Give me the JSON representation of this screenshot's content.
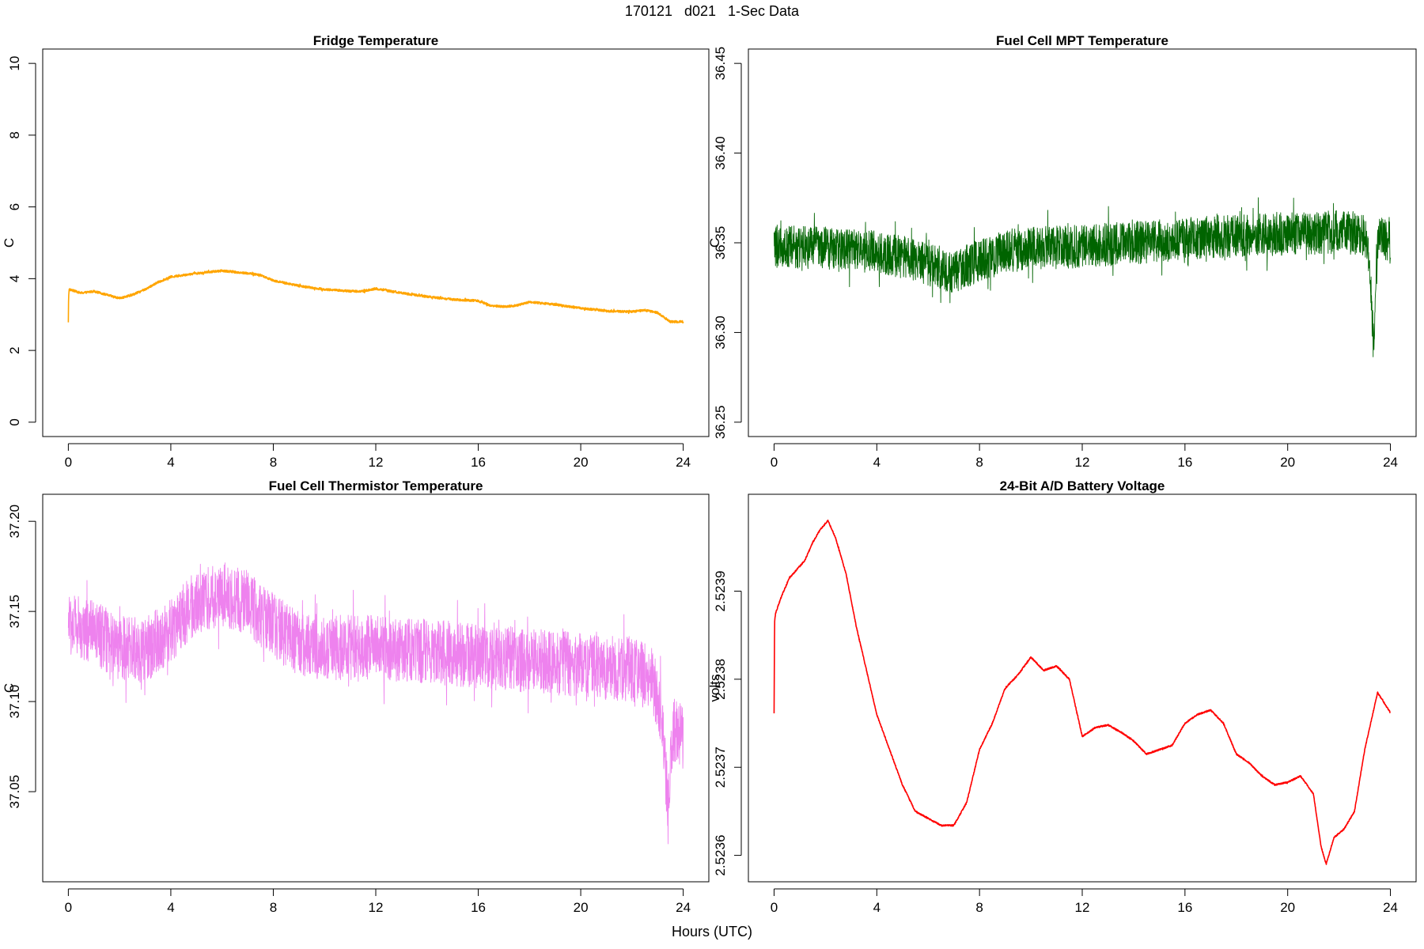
{
  "figure": {
    "suptitle": "170121   d021   1-Sec Data",
    "xlabel": "Hours (UTC)"
  },
  "chart_data": [
    {
      "type": "line",
      "title": "Fridge Temperature",
      "xlabel": "",
      "ylabel": "C",
      "xlim": [
        -1,
        25
      ],
      "ylim": [
        -0.4,
        10.4
      ],
      "xticks": [
        0,
        4,
        8,
        12,
        16,
        20,
        24
      ],
      "yticks": [
        0,
        2,
        4,
        6,
        8,
        10
      ],
      "ytick_labels": [
        "0",
        "2",
        "4",
        "6",
        "8",
        "10"
      ],
      "color": "#FFA500",
      "noise": 0.03,
      "series": [
        {
          "name": "Fridge Temperature",
          "x": [
            0,
            0.01,
            0.03,
            0.5,
            1.0,
            1.5,
            2.0,
            2.5,
            3.0,
            3.5,
            4.0,
            5.0,
            6.0,
            7.0,
            7.5,
            8.0,
            9.0,
            10.0,
            10.5,
            11.0,
            11.5,
            12.0,
            13.0,
            14.0,
            15.0,
            16.0,
            16.5,
            17.0,
            17.5,
            18.0,
            19.0,
            20.0,
            21.0,
            22.0,
            22.5,
            23.0,
            23.5,
            24.0
          ],
          "y": [
            2.8,
            3.5,
            3.7,
            3.6,
            3.65,
            3.55,
            3.45,
            3.55,
            3.7,
            3.9,
            4.05,
            4.15,
            4.22,
            4.15,
            4.1,
            3.95,
            3.8,
            3.7,
            3.68,
            3.65,
            3.65,
            3.72,
            3.6,
            3.5,
            3.42,
            3.38,
            3.25,
            3.22,
            3.25,
            3.35,
            3.28,
            3.18,
            3.1,
            3.08,
            3.12,
            3.05,
            2.8,
            2.8
          ]
        }
      ]
    },
    {
      "type": "line",
      "title": "Fuel Cell MPT Temperature",
      "xlabel": "",
      "ylabel": "C",
      "xlim": [
        -1,
        25
      ],
      "ylim": [
        36.242,
        36.458
      ],
      "xticks": [
        0,
        4,
        8,
        12,
        16,
        20,
        24
      ],
      "yticks": [
        36.25,
        36.3,
        36.35,
        36.4,
        36.45
      ],
      "ytick_labels": [
        "36.25",
        "36.30",
        "36.35",
        "36.40",
        "36.45"
      ],
      "color": "#006400",
      "noise": 0.012,
      "series": [
        {
          "name": "Fuel Cell MPT Temperature",
          "x": [
            0,
            2,
            4,
            5,
            6,
            7,
            8,
            9,
            10,
            12,
            14,
            16,
            18,
            20,
            22,
            23,
            23.2,
            23.35,
            23.45,
            23.6,
            24.0
          ],
          "y": [
            36.348,
            36.347,
            36.345,
            36.342,
            36.338,
            36.334,
            36.34,
            36.345,
            36.347,
            36.348,
            36.35,
            36.352,
            36.354,
            36.355,
            36.356,
            36.355,
            36.335,
            36.29,
            36.34,
            36.355,
            36.35
          ]
        }
      ]
    },
    {
      "type": "line",
      "title": "Fuel Cell Thermistor Temperature",
      "xlabel": "",
      "ylabel": "C",
      "xlim": [
        -1,
        25
      ],
      "ylim": [
        37.0,
        37.215
      ],
      "xticks": [
        0,
        4,
        8,
        12,
        16,
        20,
        24
      ],
      "yticks": [
        37.05,
        37.1,
        37.15,
        37.2
      ],
      "ytick_labels": [
        "37.05",
        "37.10",
        "37.15",
        "37.20"
      ],
      "color": "#EE82EE",
      "noise": 0.018,
      "series": [
        {
          "name": "Fuel Cell Thermistor Temperature",
          "x": [
            0,
            1,
            2,
            3,
            4,
            5,
            6,
            7,
            8,
            9,
            10,
            12,
            14,
            16,
            18,
            20,
            22,
            22.8,
            23.2,
            23.4,
            23.6,
            24.0
          ],
          "y": [
            37.143,
            37.138,
            37.13,
            37.128,
            37.14,
            37.155,
            37.16,
            37.155,
            37.142,
            37.132,
            37.13,
            37.13,
            37.128,
            37.125,
            37.123,
            37.12,
            37.118,
            37.112,
            37.09,
            37.04,
            37.085,
            37.08
          ]
        }
      ]
    },
    {
      "type": "line",
      "title": "24-Bit A/D Battery Voltage",
      "xlabel": "",
      "ylabel": "volts",
      "xlim": [
        -1,
        25
      ],
      "ylim": [
        2.52357,
        2.52401
      ],
      "xticks": [
        0,
        4,
        8,
        12,
        16,
        20,
        24
      ],
      "yticks": [
        2.5236,
        2.5237,
        2.5238,
        2.5239
      ],
      "ytick_labels": [
        "2.5236",
        "2.5237",
        "2.5238",
        "2.5239"
      ],
      "color": "#FF0000",
      "noise": 8e-07,
      "series": [
        {
          "name": "24-Bit A/D Battery Voltage",
          "x": [
            0,
            0.02,
            0.06,
            0.3,
            0.6,
            0.9,
            1.2,
            1.5,
            1.8,
            2.1,
            2.4,
            2.8,
            3.2,
            3.6,
            4.0,
            4.5,
            5.0,
            5.5,
            6.0,
            6.5,
            7.0,
            7.5,
            8.0,
            8.5,
            9.0,
            9.5,
            10.0,
            10.5,
            11.0,
            11.5,
            12.0,
            12.5,
            13.0,
            13.5,
            14.0,
            14.5,
            15.0,
            15.5,
            16.0,
            16.5,
            17.0,
            17.5,
            18.0,
            18.5,
            19.0,
            19.5,
            20.0,
            20.5,
            21.0,
            21.3,
            21.5,
            21.8,
            22.2,
            22.6,
            23.0,
            23.5,
            24.0
          ],
          "y": [
            2.523762,
            2.523865,
            2.523875,
            2.523895,
            2.523915,
            2.523925,
            2.523935,
            2.523955,
            2.52397,
            2.52398,
            2.52396,
            2.52392,
            2.52386,
            2.52381,
            2.52376,
            2.52372,
            2.52368,
            2.52365,
            2.523642,
            2.523634,
            2.523634,
            2.52366,
            2.52372,
            2.52375,
            2.52379,
            2.523805,
            2.523825,
            2.52381,
            2.523815,
            2.5238,
            2.523735,
            2.523745,
            2.523748,
            2.52374,
            2.52373,
            2.523715,
            2.52372,
            2.523725,
            2.52375,
            2.52376,
            2.523765,
            2.52375,
            2.523715,
            2.523705,
            2.52369,
            2.52368,
            2.523683,
            2.52369,
            2.52367,
            2.52361,
            2.52359,
            2.52362,
            2.52363,
            2.52365,
            2.52372,
            2.523785,
            2.523762
          ]
        }
      ]
    }
  ]
}
